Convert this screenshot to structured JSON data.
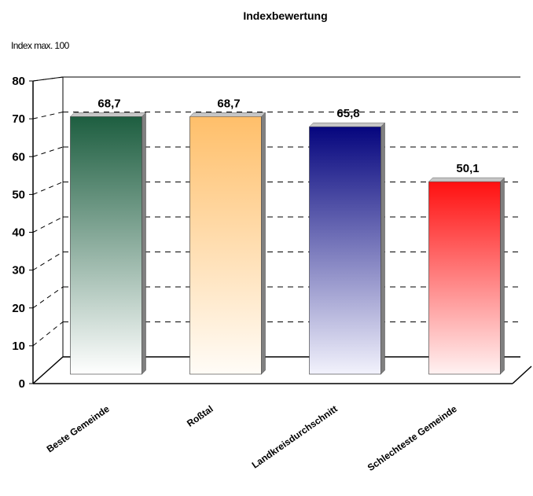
{
  "chart_data": {
    "type": "bar",
    "title": "Indexbewertung",
    "unit_label": "Index max. 100",
    "categories": [
      "Beste Gemeinde",
      "Roßtal",
      "Landkreisdurchschnitt",
      "Schlechteste Gemeinde"
    ],
    "values": [
      68.7,
      68.7,
      65.8,
      50.1
    ],
    "value_labels": [
      "68,7",
      "68,7",
      "65,8",
      "50,1"
    ],
    "ylim": [
      0,
      80
    ],
    "yticks": [
      "0",
      "10",
      "20",
      "30",
      "40",
      "50",
      "60",
      "70",
      "80"
    ],
    "grid": true,
    "legend": "none",
    "three_d": true,
    "colors": {
      "bar_tops": [
        "#1d5e40",
        "#ffbf6a",
        "#05057e",
        "#ff1010"
      ],
      "bar_bottoms": [
        "#ffffff",
        "#fffcf7",
        "#f2f2fc",
        "#fff2f2"
      ],
      "side": "#808080",
      "cap": "#c6c6c6"
    }
  }
}
